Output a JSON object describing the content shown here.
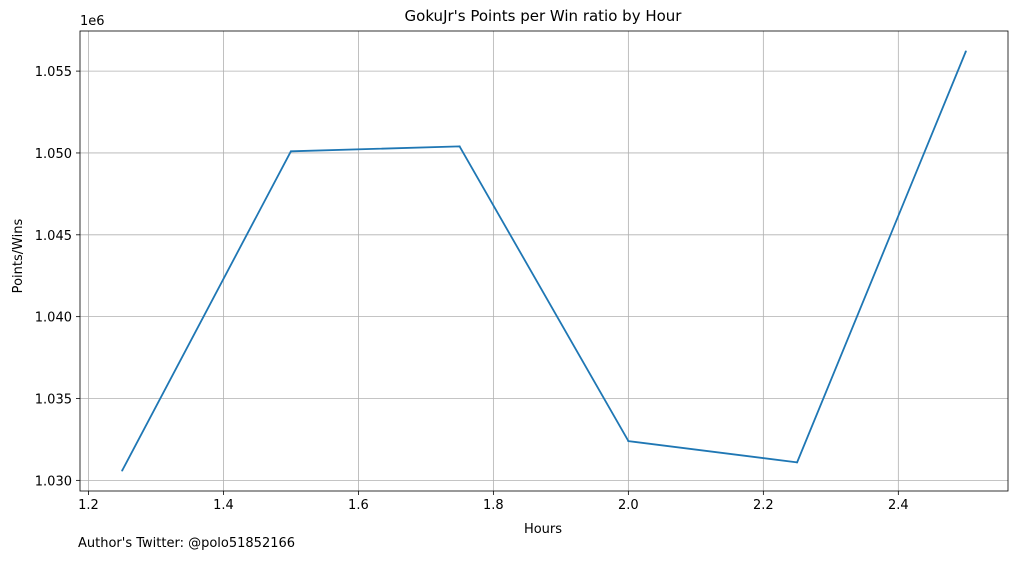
{
  "chart_data": {
    "type": "line",
    "title": "GokuJr's Points per Win ratio by Hour",
    "xlabel": "Hours",
    "ylabel": "Points/Wins",
    "y_offset_label": "1e6",
    "x": [
      1.25,
      1.5,
      1.75,
      2.0,
      2.25,
      2.5
    ],
    "series": [
      {
        "values": [
          1030600,
          1050100,
          1050400,
          1032400,
          1031100,
          1056200
        ],
        "color": "#1f77b4"
      }
    ],
    "xlim": [
      1.1875,
      2.5625
    ],
    "ylim": [
      1.02935,
      1.05745
    ],
    "x_ticks": [
      1.2,
      1.4,
      1.6,
      1.8,
      2.0,
      2.2,
      2.4
    ],
    "x_tick_labels": [
      "1.2",
      "1.4",
      "1.6",
      "1.8",
      "2.0",
      "2.2",
      "2.4"
    ],
    "y_ticks": [
      1.03,
      1.035,
      1.04,
      1.045,
      1.05,
      1.055
    ],
    "y_tick_labels": [
      "1.030",
      "1.035",
      "1.040",
      "1.045",
      "1.050",
      "1.055"
    ],
    "grid": true,
    "legend": "none"
  },
  "footer": {
    "note": "Author's Twitter: @polo51852166"
  }
}
